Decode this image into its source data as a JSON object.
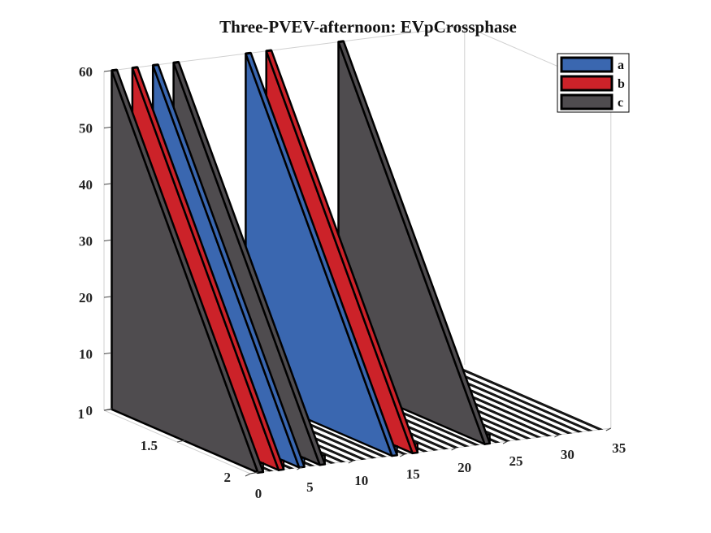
{
  "chart_data": {
    "type": "bar",
    "subtype": "3d-ribbon",
    "title": "Three-PVEV-afternoon: EVpCrossphase",
    "xlabel": "",
    "ylabel": "",
    "zlabel": "",
    "x_ticks": [
      "0",
      "5",
      "10",
      "15",
      "20",
      "25",
      "30",
      "35"
    ],
    "y_ticks": [
      "1",
      "1.5",
      "2"
    ],
    "z_ticks": [
      "0",
      "10",
      "20",
      "30",
      "40",
      "50",
      "60"
    ],
    "xlim": [
      0,
      35
    ],
    "ylim": [
      1,
      2
    ],
    "zlim": [
      0,
      60
    ],
    "grid": false,
    "legend": {
      "position": "top-right",
      "entries": [
        "a",
        "b",
        "c"
      ]
    },
    "colors": {
      "a": "#3a67b0",
      "b": "#cc2229",
      "c": "#4f4c4f",
      "edge": "#000000"
    },
    "ribbons": [
      {
        "x": 1,
        "phase": "c",
        "value": 60
      },
      {
        "x": 3,
        "phase": "b",
        "value": 60
      },
      {
        "x": 5,
        "phase": "a",
        "value": 60
      },
      {
        "x": 7,
        "phase": "c",
        "value": 60
      },
      {
        "x": 14,
        "phase": "a",
        "value": 60
      },
      {
        "x": 16,
        "phase": "b",
        "value": 60
      },
      {
        "x": 23,
        "phase": "c",
        "value": 60
      }
    ]
  }
}
